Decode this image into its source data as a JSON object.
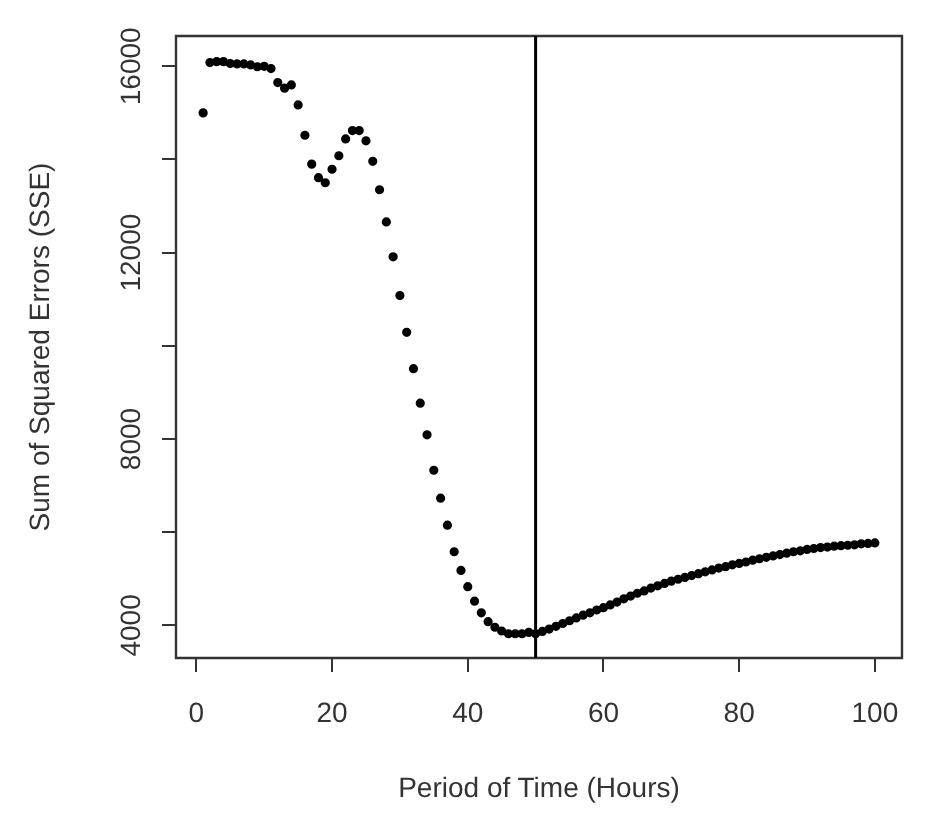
{
  "chart_data": {
    "type": "scatter",
    "xlabel": "Period of Time (Hours)",
    "ylabel": "Sum of Squared Errors (SSE)",
    "x": [
      1,
      2,
      3,
      4,
      5,
      6,
      7,
      8,
      9,
      10,
      11,
      12,
      13,
      14,
      15,
      16,
      17,
      18,
      19,
      20,
      21,
      22,
      23,
      24,
      25,
      26,
      27,
      28,
      29,
      30,
      31,
      32,
      33,
      34,
      35,
      36,
      37,
      38,
      39,
      40,
      41,
      42,
      43,
      44,
      45,
      46,
      47,
      48,
      49,
      50,
      51,
      52,
      53,
      54,
      55,
      56,
      57,
      58,
      59,
      60,
      61,
      62,
      63,
      64,
      65,
      66,
      67,
      68,
      69,
      70,
      71,
      72,
      73,
      74,
      75,
      76,
      77,
      78,
      79,
      80,
      81,
      82,
      83,
      84,
      85,
      86,
      87,
      88,
      89,
      90,
      91,
      92,
      93,
      94,
      95,
      96,
      97,
      98,
      99,
      100
    ],
    "series": [
      {
        "color": "#000000",
        "values": [
          15000,
          16080,
          16100,
          16100,
          16060,
          16050,
          16050,
          16030,
          15990,
          16000,
          15950,
          15650,
          15530,
          15600,
          15170,
          14520,
          13900,
          13610,
          13500,
          13790,
          14080,
          14440,
          14620,
          14620,
          14400,
          13960,
          13350,
          12660,
          11910,
          11080,
          10290,
          9510,
          8770,
          8090,
          7330,
          6730,
          6150,
          5580,
          5180,
          4830,
          4520,
          4270,
          4080,
          3960,
          3880,
          3820,
          3820,
          3820,
          3850,
          3820,
          3870,
          3920,
          3980,
          4040,
          4100,
          4160,
          4220,
          4270,
          4330,
          4380,
          4440,
          4500,
          4570,
          4630,
          4690,
          4740,
          4800,
          4850,
          4900,
          4950,
          4990,
          5030,
          5070,
          5110,
          5150,
          5190,
          5230,
          5260,
          5300,
          5330,
          5360,
          5400,
          5430,
          5460,
          5490,
          5520,
          5550,
          5580,
          5600,
          5630,
          5650,
          5670,
          5680,
          5700,
          5710,
          5720,
          5730,
          5750,
          5760,
          5770
        ]
      }
    ],
    "xlim": [
      -3,
      104
    ],
    "xticks": [
      0,
      20,
      40,
      60,
      80,
      100
    ],
    "ylim": [
      3300,
      16650
    ],
    "yticks": [
      4000,
      {
        "value": 6000,
        "label": null
      },
      8000,
      {
        "value": 10000,
        "label": null
      },
      12000,
      {
        "value": 14000,
        "label": null
      },
      16000
    ],
    "ref_lines": [
      {
        "axis": "x",
        "value": 50,
        "color": "#000000"
      }
    ],
    "grid": false,
    "legend": false,
    "marker": "circle"
  }
}
